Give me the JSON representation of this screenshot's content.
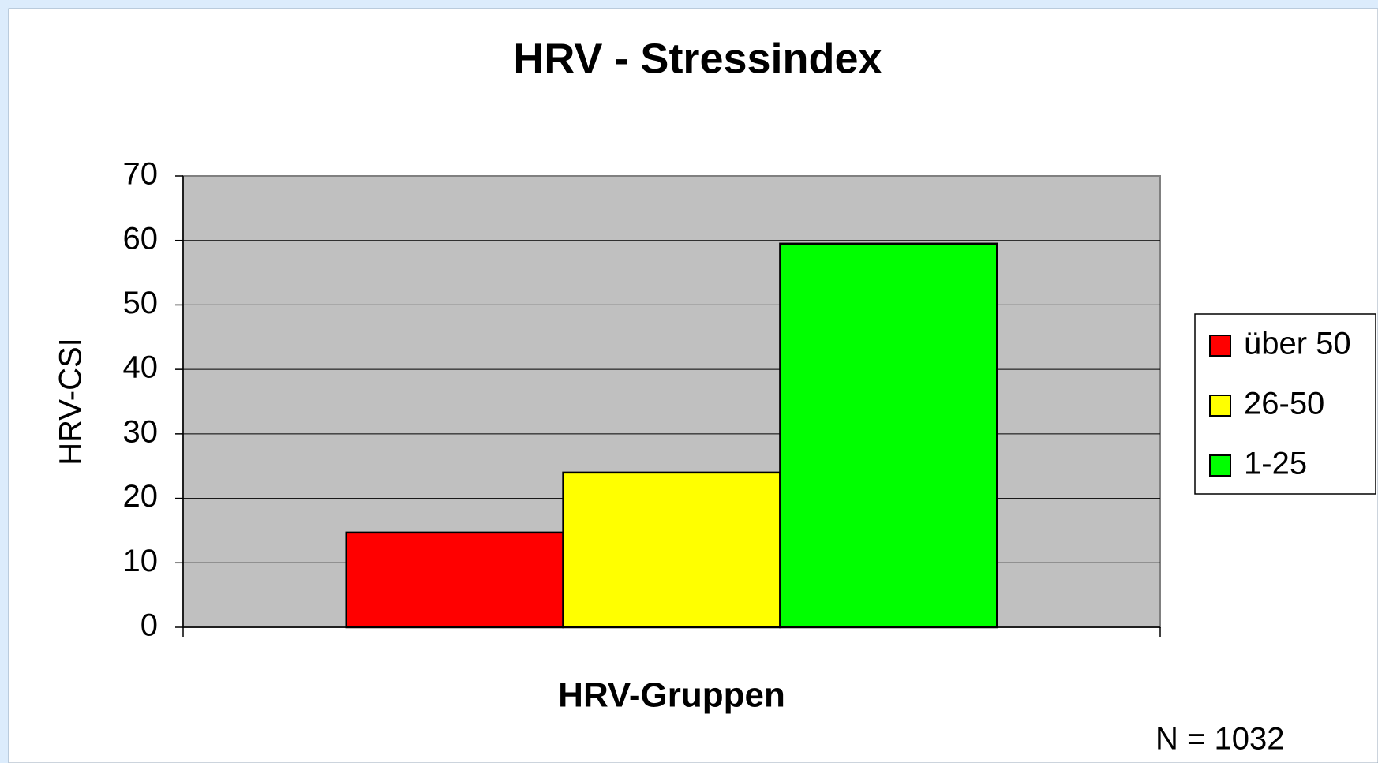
{
  "chart_data": {
    "type": "bar",
    "title": "HRV - Stressindex",
    "y_label": "HRV-CSI",
    "x_label": "HRV-Gruppen",
    "annotation": "N = 1032",
    "categories": [
      null
    ],
    "series": [
      {
        "name": "über 50",
        "color": "#ff0000",
        "values": [
          14.7
        ]
      },
      {
        "name": "26-50",
        "color": "#ffff00",
        "values": [
          24
        ]
      },
      {
        "name": "1-25",
        "color": "#00ff00",
        "values": [
          59.5
        ]
      }
    ],
    "ylim": [
      0,
      70
    ],
    "yticks": [
      0,
      10,
      20,
      30,
      40,
      50,
      60,
      70
    ],
    "grid": true,
    "legend": "right"
  }
}
